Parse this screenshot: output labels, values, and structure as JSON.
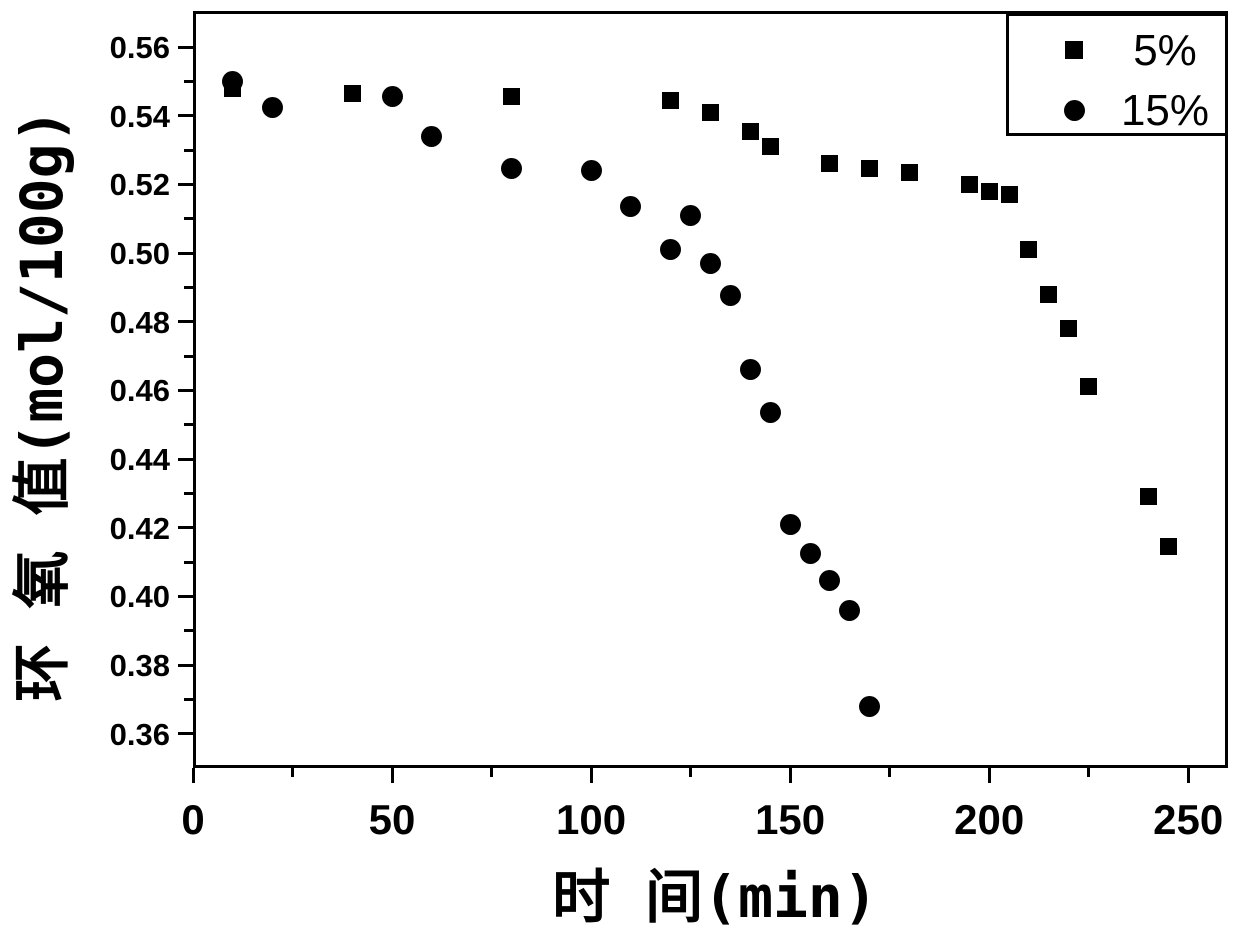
{
  "chart_data": {
    "type": "scatter",
    "title": "",
    "xlabel": "时 间(min)",
    "ylabel": "环 氧 值(mol/100g)",
    "xlim": [
      0,
      260
    ],
    "ylim": [
      0.35,
      0.5705
    ],
    "grid": false,
    "background_color": "#ffffff",
    "marker_color": "#000000",
    "x_ticks": {
      "major": [
        0,
        50,
        100,
        150,
        200,
        250
      ],
      "minor": [
        25,
        75,
        125,
        175,
        225
      ],
      "labels": [
        "0",
        "50",
        "100",
        "150",
        "200",
        "250"
      ]
    },
    "y_ticks": {
      "major": [
        0.56,
        0.54,
        0.52,
        0.5,
        0.48,
        0.46,
        0.44,
        0.42,
        0.4,
        0.38,
        0.36
      ],
      "minor": [
        0.55,
        0.53,
        0.51,
        0.49,
        0.47,
        0.45,
        0.43,
        0.41,
        0.39,
        0.37
      ],
      "labels": [
        "0.56",
        "0.54",
        "0.52",
        "0.50",
        "0.48",
        "0.46",
        "0.44",
        "0.42",
        "0.40",
        "0.38",
        "0.36"
      ]
    },
    "legend": {
      "position": "top-right",
      "entries": [
        {
          "label": "5%",
          "marker": "square"
        },
        {
          "label": "15%",
          "marker": "circle"
        }
      ]
    },
    "series": [
      {
        "name": "5%",
        "marker": "square",
        "points": [
          [
            10,
            0.548
          ],
          [
            40,
            0.5465
          ],
          [
            80,
            0.5455
          ],
          [
            120,
            0.5445
          ],
          [
            130,
            0.541
          ],
          [
            140,
            0.5355
          ],
          [
            145,
            0.531
          ],
          [
            160,
            0.526
          ],
          [
            170,
            0.5245
          ],
          [
            180,
            0.5235
          ],
          [
            195,
            0.52
          ],
          [
            200,
            0.518
          ],
          [
            205,
            0.517
          ],
          [
            210,
            0.501
          ],
          [
            215,
            0.488
          ],
          [
            220,
            0.478
          ],
          [
            225,
            0.461
          ],
          [
            240,
            0.429
          ],
          [
            245,
            0.4145
          ]
        ]
      },
      {
        "name": "15%",
        "marker": "circle",
        "points": [
          [
            10,
            0.55
          ],
          [
            20,
            0.5425
          ],
          [
            50,
            0.5455
          ],
          [
            60,
            0.534
          ],
          [
            80,
            0.5245
          ],
          [
            100,
            0.524
          ],
          [
            110,
            0.5135
          ],
          [
            120,
            0.501
          ],
          [
            125,
            0.511
          ],
          [
            130,
            0.497
          ],
          [
            135,
            0.4875
          ],
          [
            140,
            0.466
          ],
          [
            145,
            0.4535
          ],
          [
            150,
            0.421
          ],
          [
            155,
            0.4125
          ],
          [
            160,
            0.4045
          ],
          [
            165,
            0.396
          ],
          [
            170,
            0.368
          ]
        ]
      }
    ]
  }
}
